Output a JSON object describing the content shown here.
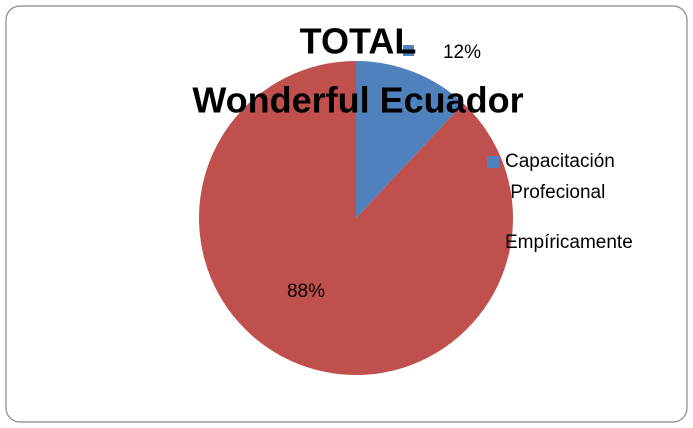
{
  "chart_data": {
    "type": "pie",
    "title": [
      "TOTAL",
      "Wonderful Ecuador"
    ],
    "categories": [
      "Capacitación Profecional",
      "Empíricamente"
    ],
    "values": [
      12,
      88
    ],
    "value_labels": [
      "12%",
      "88%"
    ],
    "colors": [
      "#4f81bd",
      "#c0504d"
    ]
  }
}
